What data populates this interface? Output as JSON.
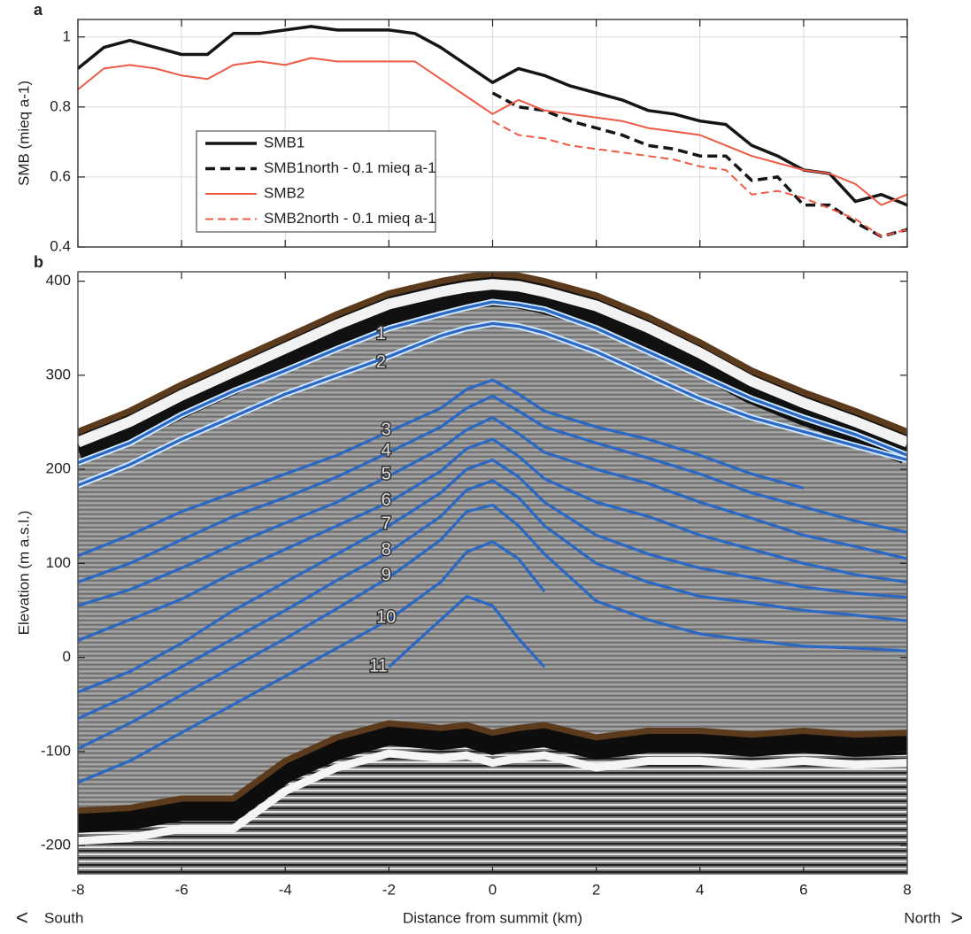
{
  "chart_data": [
    {
      "type": "line",
      "panel_label": "a",
      "ylabel": "SMB (mieq a-1)",
      "xlim": [
        -8,
        8
      ],
      "xticks": [
        -8,
        -6,
        -4,
        -2,
        0,
        2,
        4,
        6,
        8
      ],
      "ylim": [
        0.4,
        1.05
      ],
      "yticks": [
        0.4,
        0.6,
        0.8,
        1
      ],
      "grid": true,
      "x": [
        -8,
        -7.5,
        -7,
        -6.5,
        -6,
        -5.5,
        -5,
        -4.5,
        -4,
        -3.5,
        -3,
        -2.5,
        -2,
        -1.5,
        -1,
        -0.5,
        0,
        0.5,
        1,
        1.5,
        2,
        2.5,
        3,
        3.5,
        4,
        4.5,
        5,
        5.5,
        6,
        6.5,
        7,
        7.5,
        8
      ],
      "series": [
        {
          "name": "SMB1",
          "color": "#151515",
          "linestyle": "solid",
          "width": 3.5,
          "values": [
            0.91,
            0.97,
            0.99,
            0.97,
            0.95,
            0.95,
            1.01,
            1.01,
            1.02,
            1.03,
            1.02,
            1.02,
            1.02,
            1.01,
            0.97,
            0.92,
            0.87,
            0.91,
            0.89,
            0.86,
            0.84,
            0.82,
            0.79,
            0.78,
            0.76,
            0.75,
            0.69,
            0.66,
            0.62,
            0.61,
            0.53,
            0.55,
            0.52
          ]
        },
        {
          "name": "SMB1north - 0.1 mieq a-1",
          "color": "#151515",
          "linestyle": "dashed",
          "width": 3.5,
          "values": [
            null,
            null,
            null,
            null,
            null,
            null,
            null,
            null,
            null,
            null,
            null,
            null,
            null,
            null,
            null,
            null,
            0.84,
            0.8,
            0.79,
            0.76,
            0.74,
            0.72,
            0.69,
            0.68,
            0.66,
            0.66,
            0.59,
            0.6,
            0.52,
            0.52,
            0.47,
            0.43,
            0.45
          ]
        },
        {
          "name": "SMB2",
          "color": "#ee5a44",
          "linestyle": "solid",
          "width": 2,
          "values": [
            0.85,
            0.91,
            0.92,
            0.91,
            0.89,
            0.88,
            0.92,
            0.93,
            0.92,
            0.94,
            0.93,
            0.93,
            0.93,
            0.93,
            0.88,
            0.83,
            0.78,
            0.82,
            0.79,
            0.78,
            0.77,
            0.76,
            0.74,
            0.73,
            0.72,
            0.69,
            0.66,
            0.64,
            0.62,
            0.61,
            0.58,
            0.52,
            0.55
          ]
        },
        {
          "name": "SMB2north - 0.1 mieq a-1",
          "color": "#ee5a44",
          "linestyle": "dashed",
          "width": 2,
          "values": [
            null,
            null,
            null,
            null,
            null,
            null,
            null,
            null,
            null,
            null,
            null,
            null,
            null,
            null,
            null,
            null,
            0.76,
            0.72,
            0.71,
            0.69,
            0.68,
            0.67,
            0.66,
            0.65,
            0.63,
            0.62,
            0.55,
            0.56,
            0.54,
            0.51,
            0.48,
            0.43,
            0.45
          ]
        }
      ]
    },
    {
      "type": "radargram",
      "panel_label": "b",
      "ylabel": "Elevation (m a.s.l.)",
      "xlabel": "Distance from summit (km)",
      "direction_labels": [
        "<",
        "South",
        "North",
        ">"
      ],
      "xlim": [
        -8,
        8
      ],
      "xticks": [
        -8,
        -6,
        -4,
        -2,
        0,
        2,
        4,
        6,
        8
      ],
      "ylim": [
        -230,
        410
      ],
      "yticks": [
        -200,
        -100,
        0,
        100,
        200,
        300,
        400
      ],
      "grid": false,
      "x": [
        -8,
        -7,
        -6,
        -5,
        -4,
        -3,
        -2,
        -1,
        -0.5,
        0,
        0.5,
        1,
        2,
        3,
        4,
        5,
        6,
        7,
        8
      ],
      "surface": {
        "color": "#5c3a1c",
        "values": [
          240,
          262,
          290,
          315,
          340,
          365,
          387,
          400,
          405,
          408,
          406,
          400,
          385,
          362,
          335,
          305,
          282,
          262,
          240
        ]
      },
      "bed": {
        "color": "#5c3a1c",
        "values": [
          -163,
          -160,
          -150,
          -150,
          -110,
          -85,
          -70,
          -75,
          -72,
          -80,
          -75,
          -72,
          -85,
          -78,
          -78,
          -82,
          -78,
          -82,
          -80
        ]
      },
      "layer_color": "#2a68c4",
      "series": [
        {
          "name": "1",
          "values": [
            207,
            228,
            258,
            283,
            305,
            328,
            350,
            365,
            372,
            378,
            375,
            370,
            350,
            325,
            300,
            275,
            255,
            237,
            215
          ]
        },
        {
          "name": "2",
          "values": [
            183,
            205,
            232,
            256,
            280,
            300,
            320,
            342,
            350,
            355,
            352,
            345,
            325,
            300,
            275,
            255,
            240,
            225,
            210
          ]
        },
        {
          "name": "3",
          "values": [
            108,
            130,
            155,
            175,
            195,
            215,
            240,
            265,
            285,
            295,
            280,
            262,
            245,
            232,
            215,
            195,
            180,
            null,
            null
          ]
        },
        {
          "name": "4",
          "values": [
            80,
            100,
            125,
            150,
            170,
            192,
            218,
            245,
            265,
            278,
            262,
            245,
            228,
            212,
            195,
            175,
            160,
            145,
            133
          ]
        },
        {
          "name": "5",
          "values": [
            55,
            72,
            95,
            120,
            143,
            165,
            193,
            222,
            242,
            255,
            238,
            218,
            200,
            185,
            165,
            148,
            130,
            118,
            105
          ]
        },
        {
          "name": "6",
          "values": [
            18,
            40,
            62,
            90,
            115,
            140,
            165,
            198,
            222,
            232,
            214,
            190,
            165,
            150,
            130,
            115,
            100,
            88,
            80
          ]
        },
        {
          "name": "7",
          "values": [
            -37,
            -15,
            15,
            50,
            80,
            110,
            140,
            175,
            200,
            210,
            192,
            165,
            130,
            110,
            95,
            85,
            75,
            68,
            64
          ]
        },
        {
          "name": "8",
          "values": [
            -65,
            -40,
            -10,
            20,
            50,
            82,
            112,
            150,
            178,
            188,
            170,
            140,
            100,
            80,
            65,
            58,
            50,
            45,
            39
          ]
        },
        {
          "name": "9",
          "values": [
            -97,
            -70,
            -40,
            -10,
            20,
            52,
            85,
            125,
            155,
            162,
            140,
            110,
            60,
            40,
            25,
            18,
            12,
            10,
            7
          ]
        },
        {
          "name": "10",
          "values": [
            -133,
            -110,
            -80,
            -50,
            -20,
            10,
            40,
            80,
            112,
            123,
            105,
            70,
            null,
            null,
            null,
            null,
            null,
            null,
            null
          ]
        },
        {
          "name": "11",
          "values": [
            null,
            null,
            null,
            null,
            null,
            null,
            -10,
            40,
            65,
            55,
            20,
            -10,
            null,
            null,
            null,
            null,
            null,
            null,
            null
          ]
        }
      ]
    }
  ]
}
